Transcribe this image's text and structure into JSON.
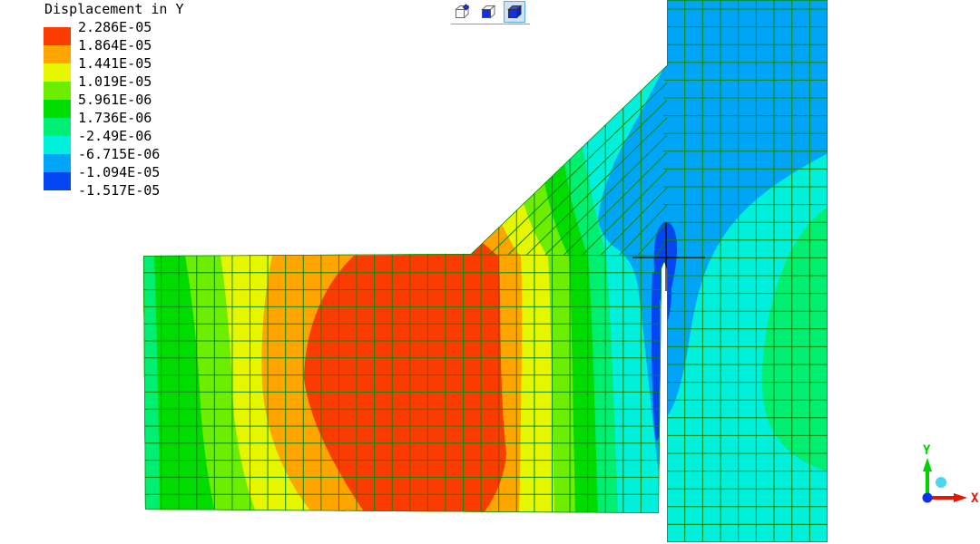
{
  "legend": {
    "title": "Displacement in Y",
    "values": [
      "2.286E-05",
      "1.864E-05",
      "1.441E-05",
      "1.019E-05",
      "5.961E-06",
      "1.736E-06",
      "-2.49E-06",
      "-6.715E-06",
      "-1.094E-05",
      "-1.517E-05"
    ],
    "colors": [
      "#FA3C02",
      "#FFA500",
      "#E6F500",
      "#6DED00",
      "#00DB00",
      "#00EE72",
      "#00F0DC",
      "#00A5F7",
      "#0345F0"
    ]
  },
  "toolbar": {
    "buttons": [
      {
        "name": "wireframe-view",
        "selected": false
      },
      {
        "name": "hidden-line-view",
        "selected": false
      },
      {
        "name": "shaded-view",
        "selected": true
      }
    ]
  },
  "axis_triad": {
    "x_label": "X",
    "y_label": "Y",
    "x_color": "#E81400",
    "y_color": "#00D200",
    "origin_color": "#0933E8",
    "z_dot_color": "#49D6EE"
  },
  "mesh": {
    "grid_line_color": "#068A06",
    "crack_marker_color": "#000000"
  }
}
